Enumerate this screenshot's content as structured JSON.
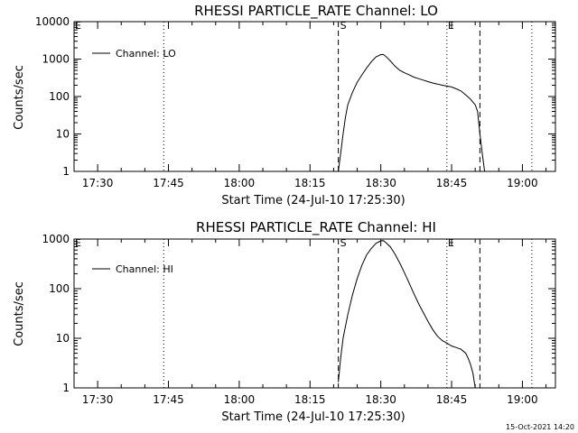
{
  "footer": {
    "timestamp": "15-Oct-2021 14:20"
  },
  "chart_data": [
    {
      "type": "line",
      "title": "RHESSI PARTICLE_RATE Channel: LO",
      "xlabel": "Start Time (24-Jul-10 17:25:30)",
      "ylabel": "Counts/sec",
      "yscale": "log",
      "xlim": [
        "17:25",
        "19:07"
      ],
      "ylim": [
        1,
        10000
      ],
      "xticks": [
        "17:30",
        "17:45",
        "18:00",
        "18:15",
        "18:30",
        "18:45",
        "19:00"
      ],
      "yticks": [
        "1",
        "10",
        "100",
        "1000",
        "10000"
      ],
      "legend": {
        "position": "top-left",
        "entries": [
          "Channel: LO"
        ]
      },
      "markers": {
        "s": "S",
        "e": "E",
        "f": "E"
      },
      "vlines": [
        {
          "time": "17:44",
          "style": "dotted"
        },
        {
          "time": "18:21",
          "style": "dashed"
        },
        {
          "time": "18:44",
          "style": "dotted"
        },
        {
          "time": "18:51",
          "style": "dashed"
        },
        {
          "time": "19:02",
          "style": "dotted"
        }
      ],
      "series": [
        {
          "name": "Channel: LO",
          "x": [
            "18:21",
            "18:21:30",
            "18:22",
            "18:22:30",
            "18:23",
            "18:24",
            "18:25",
            "18:26",
            "18:27",
            "18:28",
            "18:29",
            "18:30",
            "18:30:30",
            "18:31",
            "18:32",
            "18:33",
            "18:34",
            "18:35",
            "18:36",
            "18:37",
            "18:38",
            "18:39",
            "18:40",
            "18:41",
            "18:42",
            "18:43",
            "18:44",
            "18:45",
            "18:46",
            "18:47",
            "18:48",
            "18:49",
            "18:50",
            "18:50:30",
            "18:51",
            "18:51:30",
            "18:52"
          ],
          "y": [
            1,
            3,
            10,
            28,
            60,
            130,
            240,
            380,
            580,
            850,
            1150,
            1320,
            1330,
            1200,
            900,
            650,
            500,
            430,
            380,
            330,
            300,
            275,
            250,
            230,
            215,
            200,
            190,
            180,
            160,
            140,
            110,
            85,
            60,
            40,
            10,
            3,
            1
          ]
        }
      ]
    },
    {
      "type": "line",
      "title": "RHESSI PARTICLE_RATE Channel: HI",
      "xlabel": "Start Time (24-Jul-10 17:25:30)",
      "ylabel": "Counts/sec",
      "yscale": "log",
      "xlim": [
        "17:25",
        "19:07"
      ],
      "ylim": [
        1,
        1000
      ],
      "xticks": [
        "17:30",
        "17:45",
        "18:00",
        "18:15",
        "18:30",
        "18:45",
        "19:00"
      ],
      "yticks": [
        "1",
        "10",
        "100",
        "1000"
      ],
      "legend": {
        "position": "top-left",
        "entries": [
          "Channel: HI"
        ]
      },
      "markers": {
        "s": "S",
        "e": "E",
        "f": "E"
      },
      "vlines": [
        {
          "time": "17:44",
          "style": "dotted"
        },
        {
          "time": "18:21",
          "style": "dashed"
        },
        {
          "time": "18:44",
          "style": "dotted"
        },
        {
          "time": "18:51",
          "style": "dashed"
        },
        {
          "time": "19:02",
          "style": "dotted"
        }
      ],
      "series": [
        {
          "name": "Channel: HI",
          "x": [
            "18:21",
            "18:21:30",
            "18:22",
            "18:23",
            "18:24",
            "18:25",
            "18:26",
            "18:27",
            "18:28",
            "18:29",
            "18:30",
            "18:30:30",
            "18:31",
            "18:32",
            "18:33",
            "18:34",
            "18:35",
            "18:36",
            "18:37",
            "18:38",
            "18:39",
            "18:40",
            "18:41",
            "18:42",
            "18:43",
            "18:44",
            "18:45",
            "18:46",
            "18:47",
            "18:48",
            "18:48:30",
            "18:49",
            "18:49:30",
            "18:50"
          ],
          "y": [
            1.3,
            4,
            10,
            30,
            75,
            160,
            300,
            480,
            650,
            820,
            920,
            930,
            860,
            700,
            500,
            330,
            210,
            130,
            80,
            50,
            33,
            22,
            15,
            11,
            9,
            8,
            7,
            6.5,
            6,
            5,
            4,
            3,
            2,
            1
          ]
        }
      ]
    }
  ]
}
